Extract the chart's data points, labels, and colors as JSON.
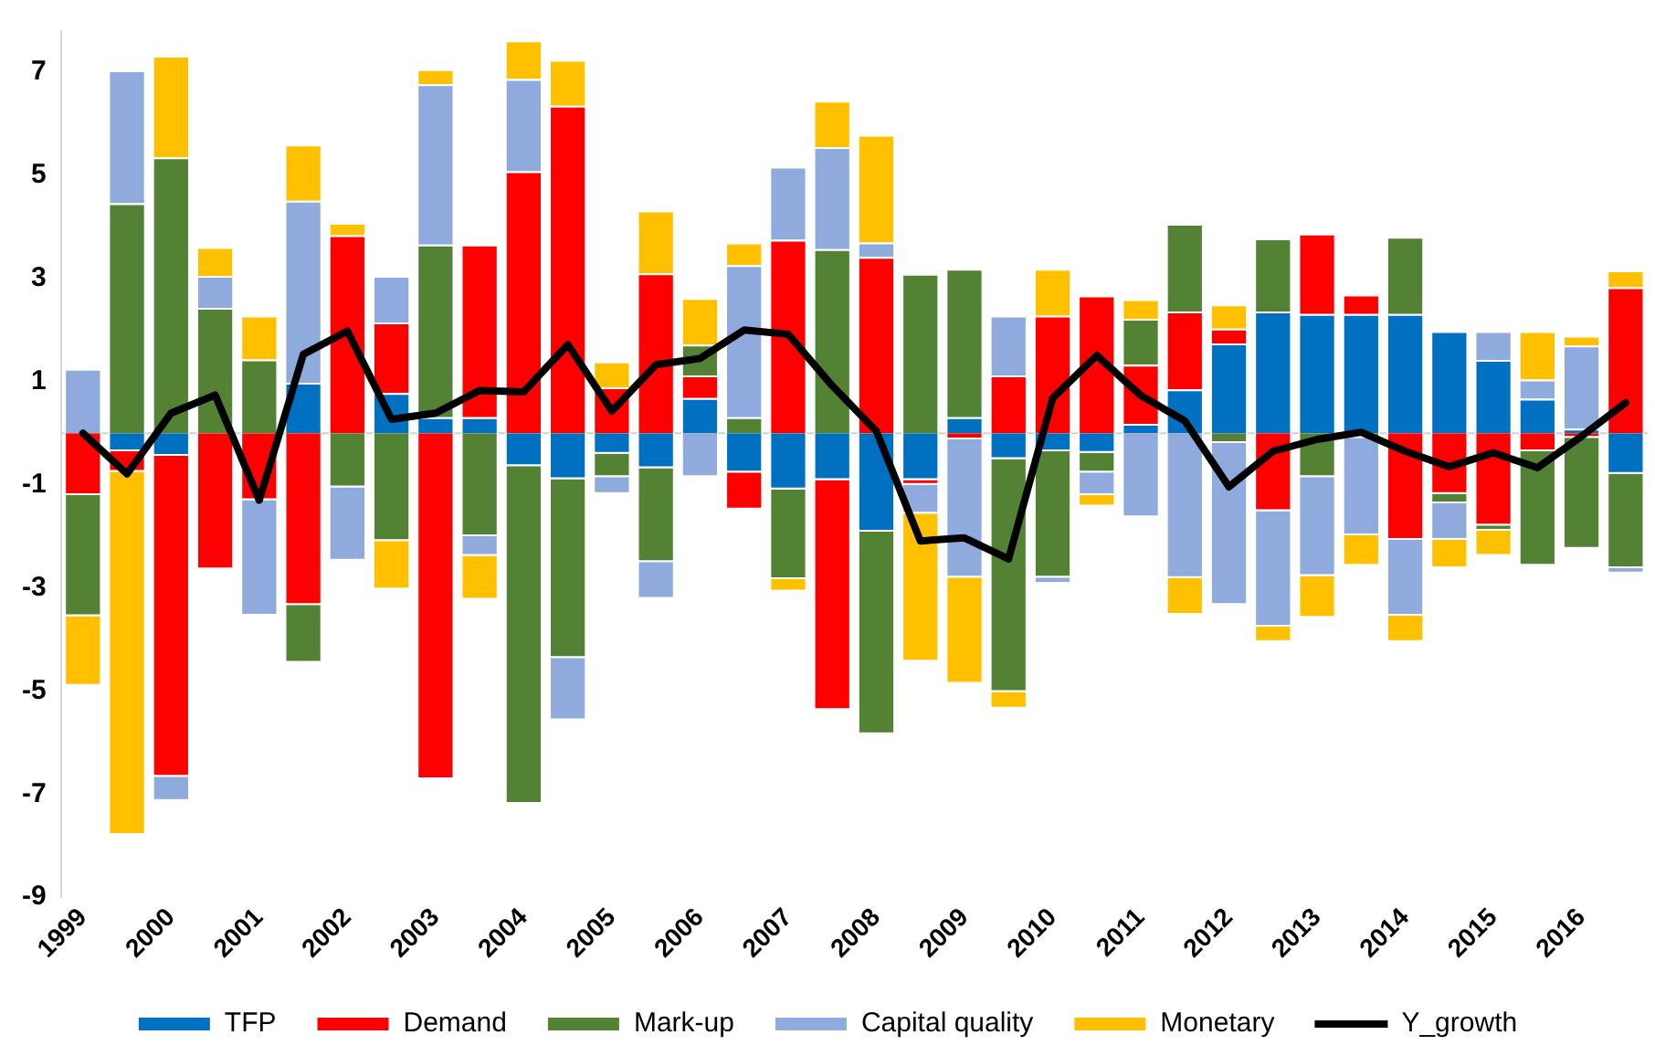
{
  "chart_data": {
    "type": "bar",
    "stacked": true,
    "categories": [
      "1999",
      null,
      "2000",
      null,
      "2001",
      null,
      "2002",
      null,
      "2003",
      null,
      "2004",
      null,
      "2005",
      null,
      "2006",
      null,
      "2007",
      null,
      "2008",
      null,
      "2009",
      null,
      "2010",
      null,
      "2011",
      null,
      "2012",
      null,
      "2013",
      null,
      "2014",
      null,
      "2015",
      null,
      "2016",
      null
    ],
    "series": [
      {
        "name": "TFP",
        "color": "#0070c0",
        "values": [
          0,
          -0.35,
          -0.44,
          0,
          0,
          0.98,
          0,
          0.78,
          0.31,
          0.31,
          -0.64,
          -0.89,
          -0.4,
          -0.68,
          0.68,
          -0.76,
          -1.09,
          -0.91,
          -1.91,
          -0.91,
          0.31,
          -0.5,
          -0.35,
          -0.38,
          0.18,
          0.85,
          1.74,
          2.36,
          2.31,
          2.31,
          2.31,
          1.98,
          1.42,
          0.67,
          0.09,
          -0.79
        ]
      },
      {
        "name": "Demand",
        "color": "#ff0000",
        "values": [
          -1.2,
          -0.4,
          -6.22,
          -2.64,
          -1.3,
          -3.33,
          3.84,
          1.37,
          -6.71,
          3.35,
          5.08,
          6.35,
          0.89,
          3.1,
          0.44,
          -0.72,
          3.75,
          -4.46,
          3.42,
          -0.09,
          -0.12,
          1.12,
          2.28,
          2.67,
          1.15,
          1.51,
          0.29,
          -1.51,
          1.56,
          0.38,
          -2.07,
          -1.18,
          -1.79,
          -0.35,
          -0.09,
          2.83
        ]
      },
      {
        "name": "Mark-up",
        "color": "#548235",
        "values": [
          -2.35,
          4.46,
          5.35,
          2.43,
          1.43,
          -1.12,
          -1.05,
          -2.09,
          3.35,
          -2.0,
          -6.55,
          -3.47,
          -0.45,
          -1.82,
          0.6,
          0.31,
          -1.74,
          3.57,
          -3.93,
          3.09,
          2.88,
          -4.52,
          -2.45,
          -0.38,
          0.89,
          1.7,
          -0.19,
          1.42,
          -0.85,
          -0.09,
          1.5,
          -0.18,
          -0.1,
          -2.22,
          -2.15,
          -1.83
        ]
      },
      {
        "name": "Capital quality",
        "color": "#8faadc",
        "values": [
          1.25,
          2.58,
          -0.47,
          0.62,
          -2.24,
          3.53,
          -1.42,
          0.9,
          3.11,
          -0.38,
          1.79,
          -1.21,
          -0.33,
          -0.71,
          -0.85,
          2.95,
          1.42,
          1.98,
          0.28,
          -0.56,
          -2.68,
          1.16,
          -0.12,
          -0.44,
          -1.63,
          -2.81,
          -3.14,
          -2.24,
          -1.92,
          -1.89,
          -1.47,
          -0.71,
          0.56,
          0.37,
          1.61,
          -0.1
        ]
      },
      {
        "name": "Monetary",
        "color": "#ffc000",
        "values": [
          -1.35,
          -7.04,
          1.97,
          0.56,
          0.85,
          1.09,
          0.24,
          -0.94,
          0.29,
          -0.85,
          0.75,
          0.89,
          0.5,
          1.22,
          0.9,
          0.44,
          -0.24,
          0.9,
          2.09,
          -2.87,
          -2.06,
          -0.32,
          0.91,
          -0.22,
          0.38,
          -0.71,
          0.47,
          -0.3,
          -0.81,
          -0.59,
          -0.51,
          -0.55,
          -0.49,
          0.94,
          0.19,
          0.33
        ]
      },
      {
        "name": "Y_growth",
        "type": "line",
        "color": "#000000",
        "values": [
          0.0,
          -0.79,
          0.39,
          0.74,
          -1.3,
          1.53,
          1.98,
          0.27,
          0.39,
          0.83,
          0.8,
          1.72,
          0.43,
          1.33,
          1.45,
          2.0,
          1.92,
          0.92,
          0.04,
          -2.09,
          -2.03,
          -2.44,
          0.68,
          1.51,
          0.73,
          0.24,
          -1.04,
          -0.35,
          -0.12,
          0.02,
          -0.35,
          -0.65,
          -0.38,
          -0.67,
          -0.06,
          0.59
        ]
      }
    ],
    "ylim": [
      -9,
      7.8
    ],
    "yticks": [
      -9,
      -7,
      -5,
      -3,
      -1,
      1,
      3,
      5,
      7
    ],
    "grid": false,
    "legend": "bottom",
    "marker": "none",
    "line_style": "solid"
  }
}
